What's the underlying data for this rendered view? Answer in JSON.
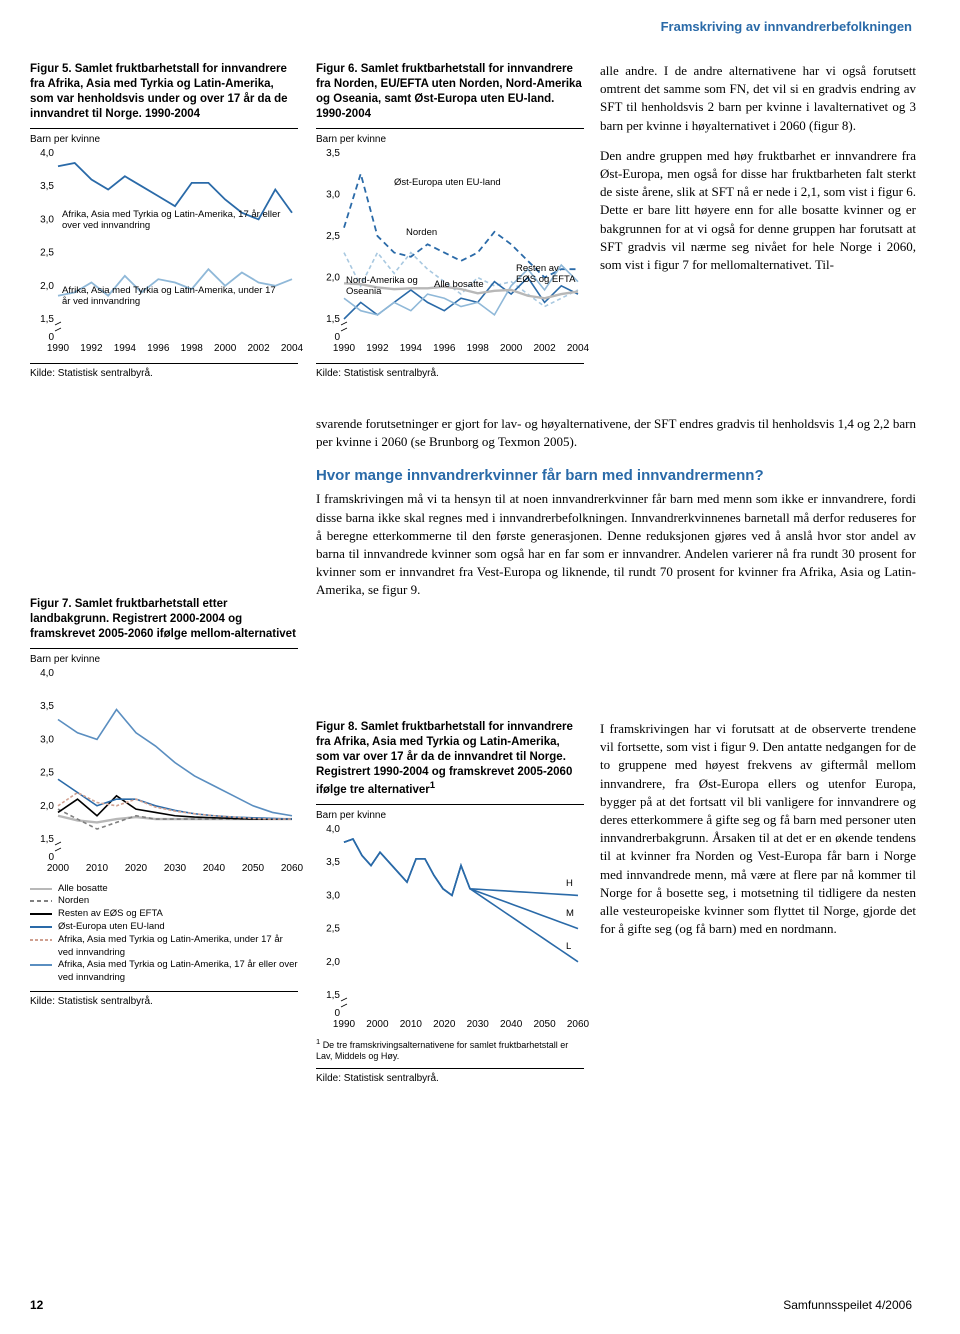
{
  "header": {
    "section_title": "Framskriving av innvandrerbefolkningen"
  },
  "fig5": {
    "title": "Figur 5. Samlet fruktbarhetstall for innvandrere fra Afrika, Asia med Tyrkia og Latin-Amerika, som var henholdsvis under og over 17 år da de innvandret til Norge. 1990-2004",
    "y_label": "Barn per kvinne",
    "ylim": [
      0,
      4.0
    ],
    "yticks": [
      "0",
      "1,5",
      "2,0",
      "2,5",
      "3,0",
      "3,5",
      "4,0"
    ],
    "xticks": [
      "1990",
      "1992",
      "1994",
      "1996",
      "1998",
      "2000",
      "2002",
      "2004"
    ],
    "annot_top": "Afrika, Asia med Tyrkia og Latin-Amerika, 17 år eller over ved innvandring",
    "annot_bottom": "Afrika, Asia med Tyrkia og Latin-Amerika, under 17 år ved innvandring",
    "series_top_color": "#2a6aa8",
    "series_bottom_color": "#8fb8d8",
    "line_width": 1.8,
    "series_top_values": [
      3.8,
      3.85,
      3.6,
      3.45,
      3.65,
      3.5,
      3.35,
      3.2,
      3.55,
      3.55,
      3.3,
      3.1,
      3.0,
      3.45,
      3.1
    ],
    "series_bottom_values": [
      1.85,
      1.9,
      2.05,
      1.85,
      2.15,
      1.9,
      2.1,
      2.05,
      1.95,
      2.25,
      2.0,
      2.2,
      2.05,
      2.0,
      2.1
    ],
    "kilde": "Kilde: Statistisk sentralbyrå."
  },
  "fig6": {
    "title": "Figur 6. Samlet fruktbarhetstall for innvandrere fra Norden, EU/EFTA uten Norden, Nord-Amerika og Oseania, samt Øst-Europa uten EU-land. 1990-2004",
    "y_label": "Barn per kvinne",
    "yticks": [
      "0",
      "1,5",
      "2,0",
      "2,5",
      "3,0",
      "3,5"
    ],
    "xticks": [
      "1990",
      "1992",
      "1994",
      "1996",
      "1998",
      "2000",
      "2002",
      "2004"
    ],
    "annot_ost": "Øst-Europa uten EU-land",
    "annot_norden": "Norden",
    "annot_na": "Nord-Amerika og Oseania",
    "annot_alle": "Alle bosatte",
    "annot_rest": "Resten av EØS og EFTA",
    "colors": {
      "ost": "#2a6aa8",
      "ost_dash": "6,4",
      "norden": "#a8c8e0",
      "norden_dash": "4,3",
      "na": "#2a6aa8",
      "alle": "#b8b8b8",
      "rest": "#8fb8d8"
    },
    "series": {
      "ost": [
        2.6,
        3.25,
        2.5,
        2.3,
        2.25,
        2.4,
        2.3,
        2.2,
        2.3,
        2.55,
        2.4,
        2.2,
        2.0,
        2.1,
        2.1
      ],
      "norden": [
        2.3,
        1.9,
        2.3,
        2.05,
        2.3,
        2.1,
        1.95,
        1.8,
        2.0,
        1.9,
        1.95,
        1.8,
        1.65,
        1.75,
        1.85
      ],
      "na": [
        1.5,
        1.7,
        1.55,
        1.7,
        1.85,
        1.7,
        1.6,
        1.75,
        1.7,
        1.95,
        1.8,
        2.0,
        1.7,
        1.9,
        1.8
      ],
      "alle": [
        1.93,
        1.92,
        1.88,
        1.86,
        1.87,
        1.87,
        1.89,
        1.86,
        1.81,
        1.84,
        1.85,
        1.78,
        1.75,
        1.8,
        1.83
      ],
      "rest": [
        1.75,
        1.6,
        1.55,
        1.7,
        1.6,
        1.8,
        1.75,
        1.65,
        1.7,
        1.55,
        1.9,
        2.1,
        1.85,
        2.15,
        1.95
      ]
    },
    "kilde": "Kilde: Statistisk sentralbyrå."
  },
  "fig7": {
    "title": "Figur 7. Samlet fruktbarhetstall etter landbakgrunn. Registrert 2000-2004 og framskrevet 2005-2060 ifølge mellom-alternativet",
    "y_label": "Barn per kvinne",
    "yticks": [
      "0",
      "1,5",
      "2,0",
      "2,5",
      "3,0",
      "3,5",
      "4,0"
    ],
    "xticks": [
      "2000",
      "2010",
      "2020",
      "2030",
      "2040",
      "2050",
      "2060"
    ],
    "legend": [
      {
        "label": "Alle bosatte",
        "color": "#b8b8b8",
        "dash": ""
      },
      {
        "label": "Norden",
        "color": "#808080",
        "dash": "4,3"
      },
      {
        "label": "Resten av EØS og EFTA",
        "color": "#000000",
        "dash": ""
      },
      {
        "label": "Øst-Europa uten EU-land",
        "color": "#2a6aa8",
        "dash": ""
      },
      {
        "label": "Afrika, Asia med Tyrkia og Latin-Amerika, under 17 år ved innvandring",
        "color": "#d0a090",
        "dash": "3,2"
      },
      {
        "label": "Afrika, Asia med Tyrkia og Latin-Amerika, 17 år eller over ved innvandring",
        "color": "#5a8ec0",
        "dash": ""
      }
    ],
    "series": {
      "s0": [
        1.85,
        1.78,
        1.75,
        1.8,
        1.83,
        1.8,
        1.8,
        1.8,
        1.8,
        1.8,
        1.8,
        1.8,
        1.8
      ],
      "s1": [
        1.95,
        1.8,
        1.65,
        1.75,
        1.85,
        1.8,
        1.8,
        1.8,
        1.8,
        1.8,
        1.8,
        1.8,
        1.8
      ],
      "s2": [
        1.9,
        2.1,
        1.85,
        2.15,
        1.95,
        1.9,
        1.85,
        1.83,
        1.82,
        1.81,
        1.8,
        1.8,
        1.8
      ],
      "s3": [
        2.4,
        2.2,
        2.0,
        2.1,
        2.1,
        2.0,
        1.93,
        1.88,
        1.85,
        1.83,
        1.82,
        1.81,
        1.8
      ],
      "s4": [
        2.0,
        2.2,
        2.05,
        2.0,
        2.1,
        1.98,
        1.92,
        1.88,
        1.85,
        1.83,
        1.81,
        1.8,
        1.8
      ],
      "s5": [
        3.3,
        3.1,
        3.0,
        3.45,
        3.1,
        2.9,
        2.65,
        2.45,
        2.3,
        2.15,
        2.0,
        1.9,
        1.85
      ]
    },
    "kilde": "Kilde: Statistisk sentralbyrå."
  },
  "fig8": {
    "title": "Figur 8. Samlet fruktbarhetstall for innvandrere fra Afrika, Asia med Tyrkia og Latin-Amerika, som var over 17 år da de innvandret til Norge. Registrert 1990-2004 og framskrevet 2005-2060 ifølge tre alternativer",
    "footnote_marker": "1",
    "y_label": "Barn per kvinne",
    "yticks": [
      "0",
      "1,5",
      "2,0",
      "2,5",
      "3,0",
      "3,5",
      "4,0"
    ],
    "xticks": [
      "1990",
      "2000",
      "2010",
      "2020",
      "2030",
      "2040",
      "2050",
      "2060"
    ],
    "labels": {
      "H": "H",
      "M": "M",
      "L": "L"
    },
    "color": "#2a6aa8",
    "footnote": "De tre framskrivingsalternativene for samlet fruktbarhetstall er Lav, Middels og Høy.",
    "kilde": "Kilde: Statistisk sentralbyrå."
  },
  "body": {
    "p1": "alle andre. I de andre alternativene har vi også forutsett omtrent det samme som FN, det vil si en gradvis endring av SFT til henholdsvis 2 barn per kvinne i lavalternativet og 3 barn per kvinne i høyalternativet i 2060 (figur 8).",
    "p2": "Den andre gruppen med høy fruktbarhet er innvandrere fra Øst-Europa, men også for disse har fruktbarheten falt sterkt de siste årene, slik at SFT nå er nede i 2,1, som vist i figur 6. Dette er bare litt høyere enn for alle bosatte kvinner og er bakgrunnen for at vi også for denne gruppen har forutsatt at SFT gradvis vil nærme seg nivået for hele Norge i 2060, som vist i figur 7 for mellomalternativet. Til-",
    "p2b": "svarende forutsetninger er gjort for lav- og høyalternativene, der SFT endres gradvis til henholdsvis 1,4 og 2,2 barn per kvinne i 2060 (se Brunborg og Texmon 2005).",
    "h_sec": "Hvor mange innvandrerkvinner får barn med innvandrermenn?",
    "p3": "I framskrivingen må vi ta hensyn til at noen innvandrerkvinner får barn med menn som ikke er innvandrere, fordi disse barna ikke skal regnes med i innvandrerbefolkningen. Innvandrerkvinnenes barnetall må derfor reduseres for å beregne etterkommerne til den første generasjonen. Denne reduksjonen gjøres ved å anslå hvor stor andel av barna til innvandrede kvinner som også har en far som er innvandrer. Andelen varierer nå fra rundt 30 prosent for kvinner som er innvandret fra Vest-Europa og liknende, til rundt 70 prosent for kvinner fra Afrika, Asia og Latin-Amerika, se figur 9.",
    "p4": "I framskrivingen har vi forutsatt at de observerte trendene vil fortsette, som vist i figur 9. Den antatte nedgangen for de to gruppene med høyest frekvens av giftermål mellom innvandrere, fra Øst-Europa ellers og utenfor Europa, bygger på at det fortsatt vil bli vanligere for innvandrere og deres etterkommere å gifte seg og få barn med personer uten innvandrerbakgrunn. Årsaken til at det er en økende tendens til at kvinner fra Norden og Vest-Europa får barn i Norge med innvandrede menn, må være at flere par nå kommer til Norge for å bosette seg, i motsetning til tidligere da nesten alle vesteuropeiske kvinner som flyttet til Norge, gjorde det for å gifte seg (og få barn) med en nordmann."
  },
  "footer": {
    "page_num": "12",
    "journal": "Samfunnsspeilet 4/2006"
  }
}
